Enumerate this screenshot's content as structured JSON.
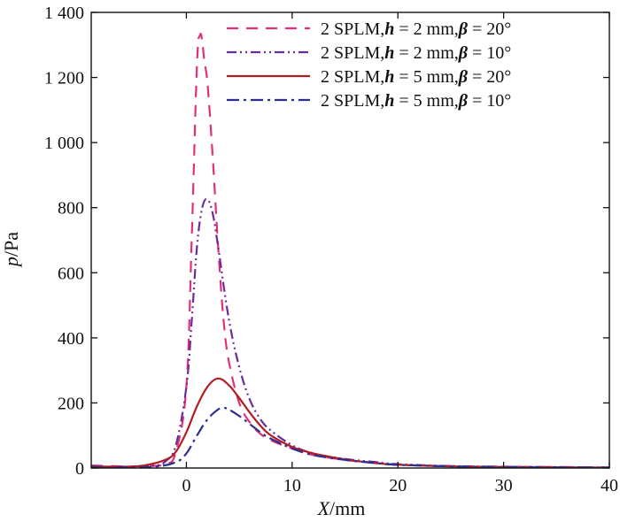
{
  "chart_data": {
    "type": "line",
    "xlabel": {
      "italic": "X",
      "rest": "/mm"
    },
    "ylabel": {
      "italic": "p",
      "rest": "/Pa"
    },
    "xlim": [
      -9,
      40
    ],
    "ylim": [
      0,
      1400
    ],
    "xticks": [
      {
        "value": 0,
        "label": "0"
      },
      {
        "value": 10,
        "label": "10"
      },
      {
        "value": 20,
        "label": "20"
      },
      {
        "value": 30,
        "label": "30"
      },
      {
        "value": 40,
        "label": "40"
      }
    ],
    "yticks": [
      {
        "value": 0,
        "label": "0"
      },
      {
        "value": 200,
        "label": "200"
      },
      {
        "value": 400,
        "label": "400"
      },
      {
        "value": 600,
        "label": "600"
      },
      {
        "value": 800,
        "label": "800"
      },
      {
        "value": 1000,
        "label": "1 000"
      },
      {
        "value": 1200,
        "label": "1 200"
      },
      {
        "value": 1400,
        "label": "1 400"
      }
    ],
    "grid": false,
    "legend_position": "top-right",
    "series": [
      {
        "name": "2 SPLM, h = 2 mm, β = 20°",
        "legend": {
          "prefix": "2 SPLM,",
          "h_sym": "h",
          "h_val": " = 2 mm,",
          "b_sym": "β",
          "b_val": " = 20°"
        },
        "color": "#e0307a",
        "dash": "13,9",
        "x": [
          -9,
          -6,
          -4,
          -2,
          -1,
          0,
          0.5,
          1,
          1.3,
          1.5,
          1.7,
          2,
          2.5,
          3,
          3.5,
          4,
          5,
          6,
          7,
          8,
          10,
          12,
          15,
          18,
          20,
          25,
          30,
          35,
          40
        ],
        "y": [
          8,
          5,
          6,
          12,
          50,
          250,
          700,
          1240,
          1330,
          1310,
          1250,
          1180,
          950,
          680,
          460,
          330,
          200,
          140,
          105,
          85,
          60,
          40,
          25,
          15,
          10,
          6,
          4,
          3,
          2
        ]
      },
      {
        "name": "2 SPLM, h = 2 mm, β = 10°",
        "legend": {
          "prefix": "2 SPLM,",
          "h_sym": "h",
          "h_val": " = 2 mm,",
          "b_sym": "β",
          "b_val": " = 10°"
        },
        "color": "#6a2c9c",
        "dash": "11,4,2,4,2,4",
        "x": [
          -9,
          -6,
          -3,
          -2,
          -1,
          0,
          0.5,
          1,
          1.5,
          2,
          2.5,
          3,
          4,
          5,
          6,
          7,
          8,
          10,
          12,
          15,
          18,
          20,
          25,
          30,
          35,
          40
        ],
        "y": [
          4,
          3,
          8,
          20,
          70,
          250,
          450,
          680,
          800,
          825,
          780,
          680,
          460,
          310,
          210,
          150,
          115,
          70,
          45,
          28,
          18,
          12,
          6,
          4,
          3,
          2
        ]
      },
      {
        "name": "2 SPLM, h = 5 mm, β = 20°",
        "legend": {
          "prefix": "2 SPLM,",
          "h_sym": "h",
          "h_val": " = 5 mm,",
          "b_sym": "β",
          "b_val": " = 20°"
        },
        "color": "#b01e23",
        "dash": "",
        "x": [
          -9,
          -6,
          -4,
          -2,
          -1,
          0,
          1,
          2,
          3,
          4,
          5,
          6,
          7,
          8,
          10,
          12,
          14,
          16,
          18,
          20,
          25,
          30,
          35,
          40
        ],
        "y": [
          5,
          4,
          8,
          25,
          50,
          110,
          190,
          250,
          275,
          255,
          215,
          170,
          130,
          100,
          65,
          45,
          32,
          22,
          15,
          10,
          5,
          3,
          2,
          1
        ]
      },
      {
        "name": "2 SPLM, h = 5 mm, β = 10°",
        "legend": {
          "prefix": "2 SPLM,",
          "h_sym": "h",
          "h_val": " = 5 mm,",
          "b_sym": "β",
          "b_val": " = 10°"
        },
        "color": "#2d2f8f",
        "dash": "14,5,3,5",
        "x": [
          -9,
          -6,
          -3,
          -1,
          0,
          1,
          2,
          3,
          3.5,
          4,
          5,
          6,
          7,
          8,
          10,
          12,
          15,
          18,
          20,
          25,
          30,
          35,
          40
        ],
        "y": [
          3,
          2,
          4,
          18,
          45,
          100,
          150,
          180,
          185,
          180,
          160,
          135,
          110,
          90,
          60,
          40,
          25,
          15,
          10,
          5,
          3,
          2,
          1
        ]
      }
    ]
  }
}
